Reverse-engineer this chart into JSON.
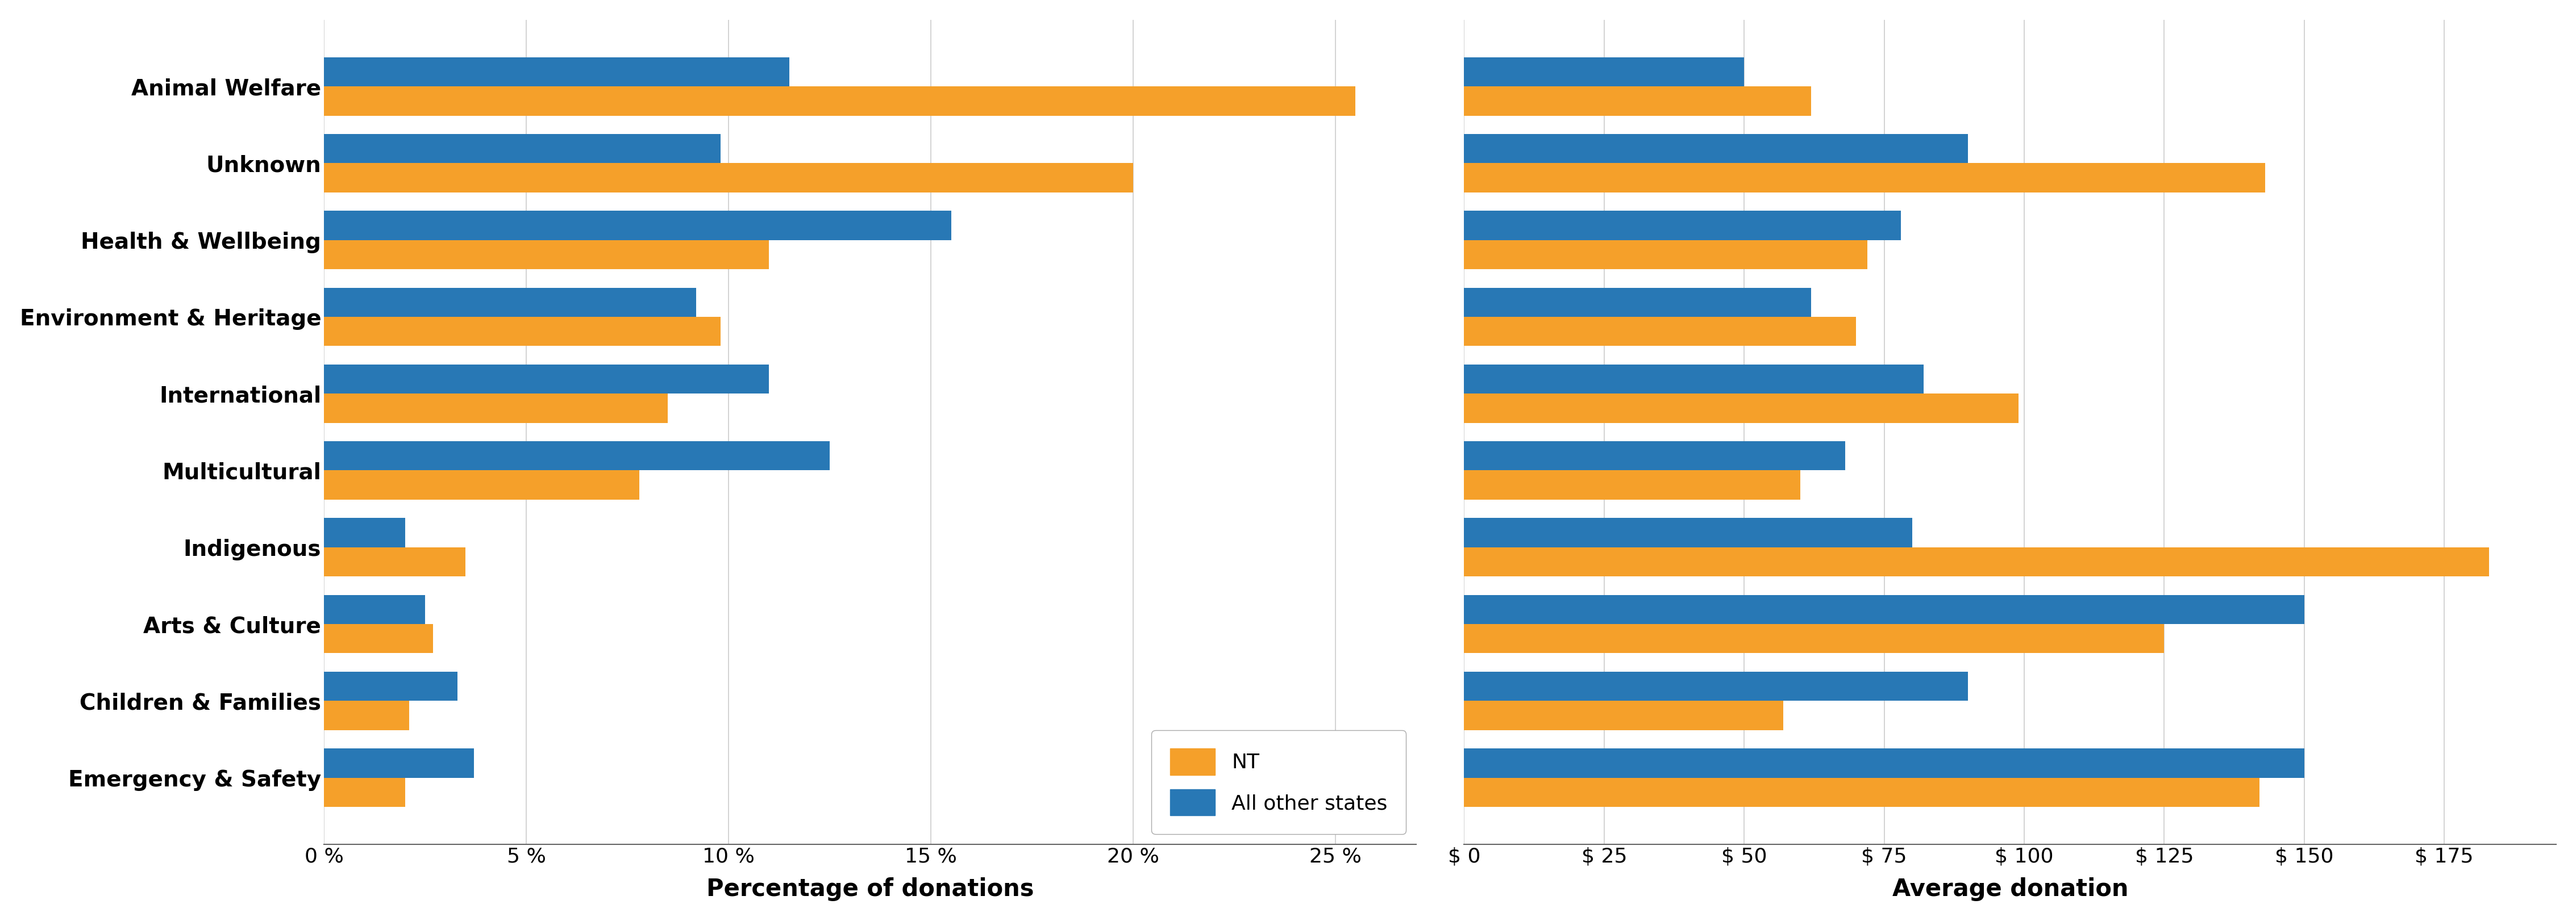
{
  "categories": [
    "Animal Welfare",
    "Unknown",
    "Health & Wellbeing",
    "Environment & Heritage",
    "International",
    "Multicultural",
    "Indigenous",
    "Arts & Culture",
    "Children & Families",
    "Emergency & Safety"
  ],
  "pct_NT": [
    25.5,
    20.0,
    11.0,
    9.8,
    8.5,
    7.8,
    3.5,
    2.7,
    2.1,
    2.0
  ],
  "pct_others": [
    11.5,
    9.8,
    15.5,
    9.2,
    11.0,
    12.5,
    2.0,
    2.5,
    3.3,
    3.7
  ],
  "avg_NT": [
    62.0,
    143.0,
    72.0,
    70.0,
    99.0,
    60.0,
    183.0,
    125.0,
    57.0,
    142.0
  ],
  "avg_others": [
    50.0,
    90.0,
    78.0,
    62.0,
    82.0,
    68.0,
    80.0,
    150.0,
    90.0,
    150.0
  ],
  "color_NT": "#f5a02a",
  "color_others": "#2878b5",
  "xlabel_left": "Percentage of donations",
  "xlabel_right": "Average donation",
  "xlim_left": [
    0,
    27
  ],
  "xlim_right": [
    0,
    195
  ],
  "xticks_left": [
    0,
    5,
    10,
    15,
    20,
    25
  ],
  "xticks_right": [
    0,
    25,
    50,
    75,
    100,
    125,
    150,
    175
  ],
  "xticklabels_left": [
    "0 %",
    "5 %",
    "10 %",
    "15 %",
    "20 %",
    "25 %"
  ],
  "xticklabels_right": [
    "$ 0",
    "$ 25",
    "$ 50",
    "$ 75",
    "$ 100",
    "$ 125",
    "$ 150",
    "$ 175"
  ],
  "legend_labels": [
    "NT",
    "All other states"
  ],
  "bar_height": 0.38,
  "background_color": "#ffffff",
  "grid_color": "#cccccc"
}
